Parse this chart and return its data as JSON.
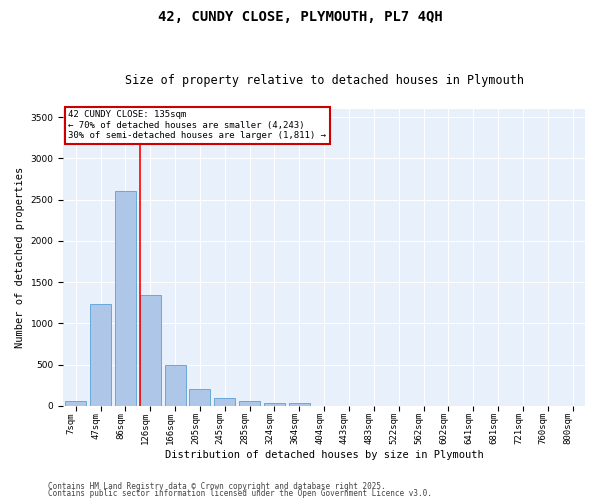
{
  "title1": "42, CUNDY CLOSE, PLYMOUTH, PL7 4QH",
  "title2": "Size of property relative to detached houses in Plymouth",
  "xlabel": "Distribution of detached houses by size in Plymouth",
  "ylabel": "Number of detached properties",
  "categories": [
    "7sqm",
    "47sqm",
    "86sqm",
    "126sqm",
    "166sqm",
    "205sqm",
    "245sqm",
    "285sqm",
    "324sqm",
    "364sqm",
    "404sqm",
    "443sqm",
    "483sqm",
    "522sqm",
    "562sqm",
    "602sqm",
    "641sqm",
    "681sqm",
    "721sqm",
    "760sqm",
    "800sqm"
  ],
  "values": [
    55,
    1240,
    2600,
    1340,
    500,
    205,
    100,
    55,
    40,
    30,
    0,
    0,
    0,
    0,
    0,
    0,
    0,
    0,
    0,
    0,
    0
  ],
  "bar_color": "#aec6e8",
  "bar_edgecolor": "#5a9fd4",
  "background_color": "#e8f0fb",
  "red_line_index": 3,
  "annotation_text": "42 CUNDY CLOSE: 135sqm\n← 70% of detached houses are smaller (4,243)\n30% of semi-detached houses are larger (1,811) →",
  "annotation_box_color": "#ffffff",
  "annotation_box_edgecolor": "#cc0000",
  "ylim": [
    0,
    3600
  ],
  "footer1": "Contains HM Land Registry data © Crown copyright and database right 2025.",
  "footer2": "Contains public sector information licensed under the Open Government Licence v3.0.",
  "title_fontsize": 10,
  "subtitle_fontsize": 8.5,
  "axis_label_fontsize": 7.5,
  "tick_fontsize": 6.5,
  "annotation_fontsize": 6.5,
  "footer_fontsize": 5.5
}
